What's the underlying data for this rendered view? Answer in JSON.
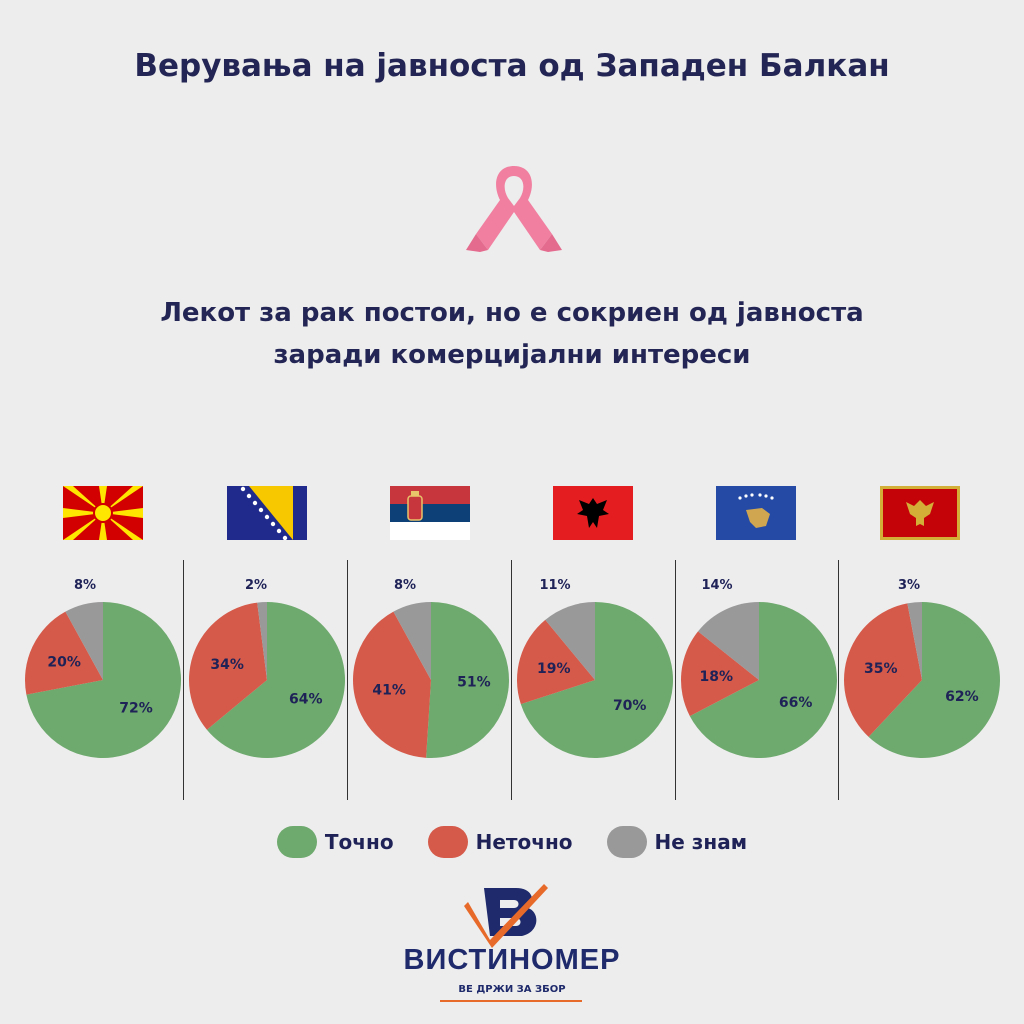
{
  "title": "Верувања на јавноста од Западен Балкан",
  "subtitle_lines": [
    "Лекот за рак постои, но е сокриен од јавноста",
    "заради комерцијални интереси"
  ],
  "colors": {
    "tochno": "#6ea96e",
    "netochno": "#d55a4a",
    "ne_znam": "#999999",
    "text": "#1e2257"
  },
  "icons": [
    "pink-ribbon-icon",
    "vistinomer-logo-icon"
  ],
  "legend": [
    {
      "label": "Точно",
      "color": "#6ea96e"
    },
    {
      "label": "Неточно",
      "color": "#d55a4a"
    },
    {
      "label": "Не знам",
      "color": "#999999"
    }
  ],
  "flags": [
    "north-macedonia-flag-icon",
    "bosnia-flag-icon",
    "serbia-flag-icon",
    "albania-flag-icon",
    "kosovo-flag-icon",
    "montenegro-flag-icon"
  ],
  "chart_data": {
    "type": "pie",
    "series_names": [
      "Точно",
      "Неточно",
      "Не знам"
    ],
    "pies": [
      {
        "values": [
          72,
          20,
          8
        ],
        "labels": [
          "72%",
          "20%",
          "8%"
        ]
      },
      {
        "values": [
          64,
          34,
          2
        ],
        "labels": [
          "64%",
          "34%",
          "2%"
        ]
      },
      {
        "values": [
          51,
          41,
          8
        ],
        "labels": [
          "51%",
          "41%",
          "8%"
        ]
      },
      {
        "values": [
          70,
          19,
          11
        ],
        "labels": [
          "70%",
          "19%",
          "11%"
        ]
      },
      {
        "values": [
          66,
          18,
          14
        ],
        "labels": [
          "66%",
          "18%",
          "14%"
        ]
      },
      {
        "values": [
          62,
          35,
          3
        ],
        "labels": [
          "62%",
          "35%",
          "3%"
        ]
      }
    ]
  },
  "brand": {
    "name": "ВИСТИНОМЕР",
    "tagline": "ВЕ ДРЖИ ЗА ЗБОР"
  }
}
